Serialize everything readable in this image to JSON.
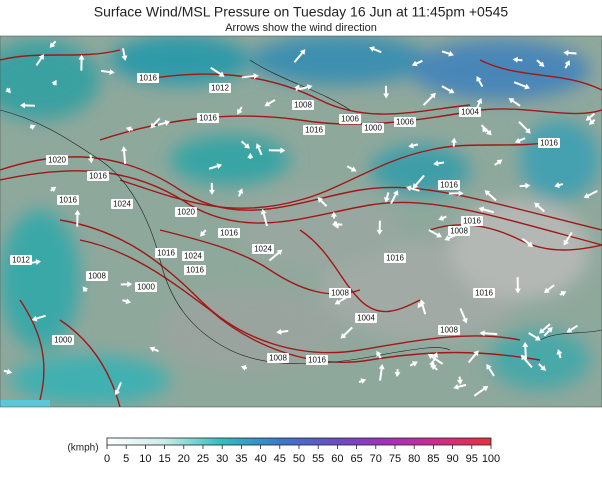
{
  "header": {
    "title": "Surface Wind/MSL Pressure on Tuesday 16 Jun at 11:45pm +0545",
    "subtitle": "Arrows show the wind direction"
  },
  "map": {
    "isobar_labels": [
      "1016",
      "1012",
      "1008",
      "1016",
      "1006",
      "1000",
      "1006",
      "1004",
      "1016",
      "1016",
      "1020",
      "1016",
      "1016",
      "1024",
      "1020",
      "1016",
      "1024",
      "1016",
      "1024",
      "1016",
      "1016",
      "1016",
      "1008",
      "1012",
      "1008",
      "1000",
      "1016",
      "1008",
      "1016",
      "1004",
      "1008",
      "1000",
      "1008",
      "1016"
    ]
  },
  "legend": {
    "unit": "(kmph)",
    "ticks": [
      "0",
      "5",
      "10",
      "15",
      "20",
      "25",
      "30",
      "35",
      "40",
      "45",
      "50",
      "55",
      "60",
      "65",
      "70",
      "75",
      "80",
      "85",
      "90",
      "95",
      "100"
    ]
  }
}
